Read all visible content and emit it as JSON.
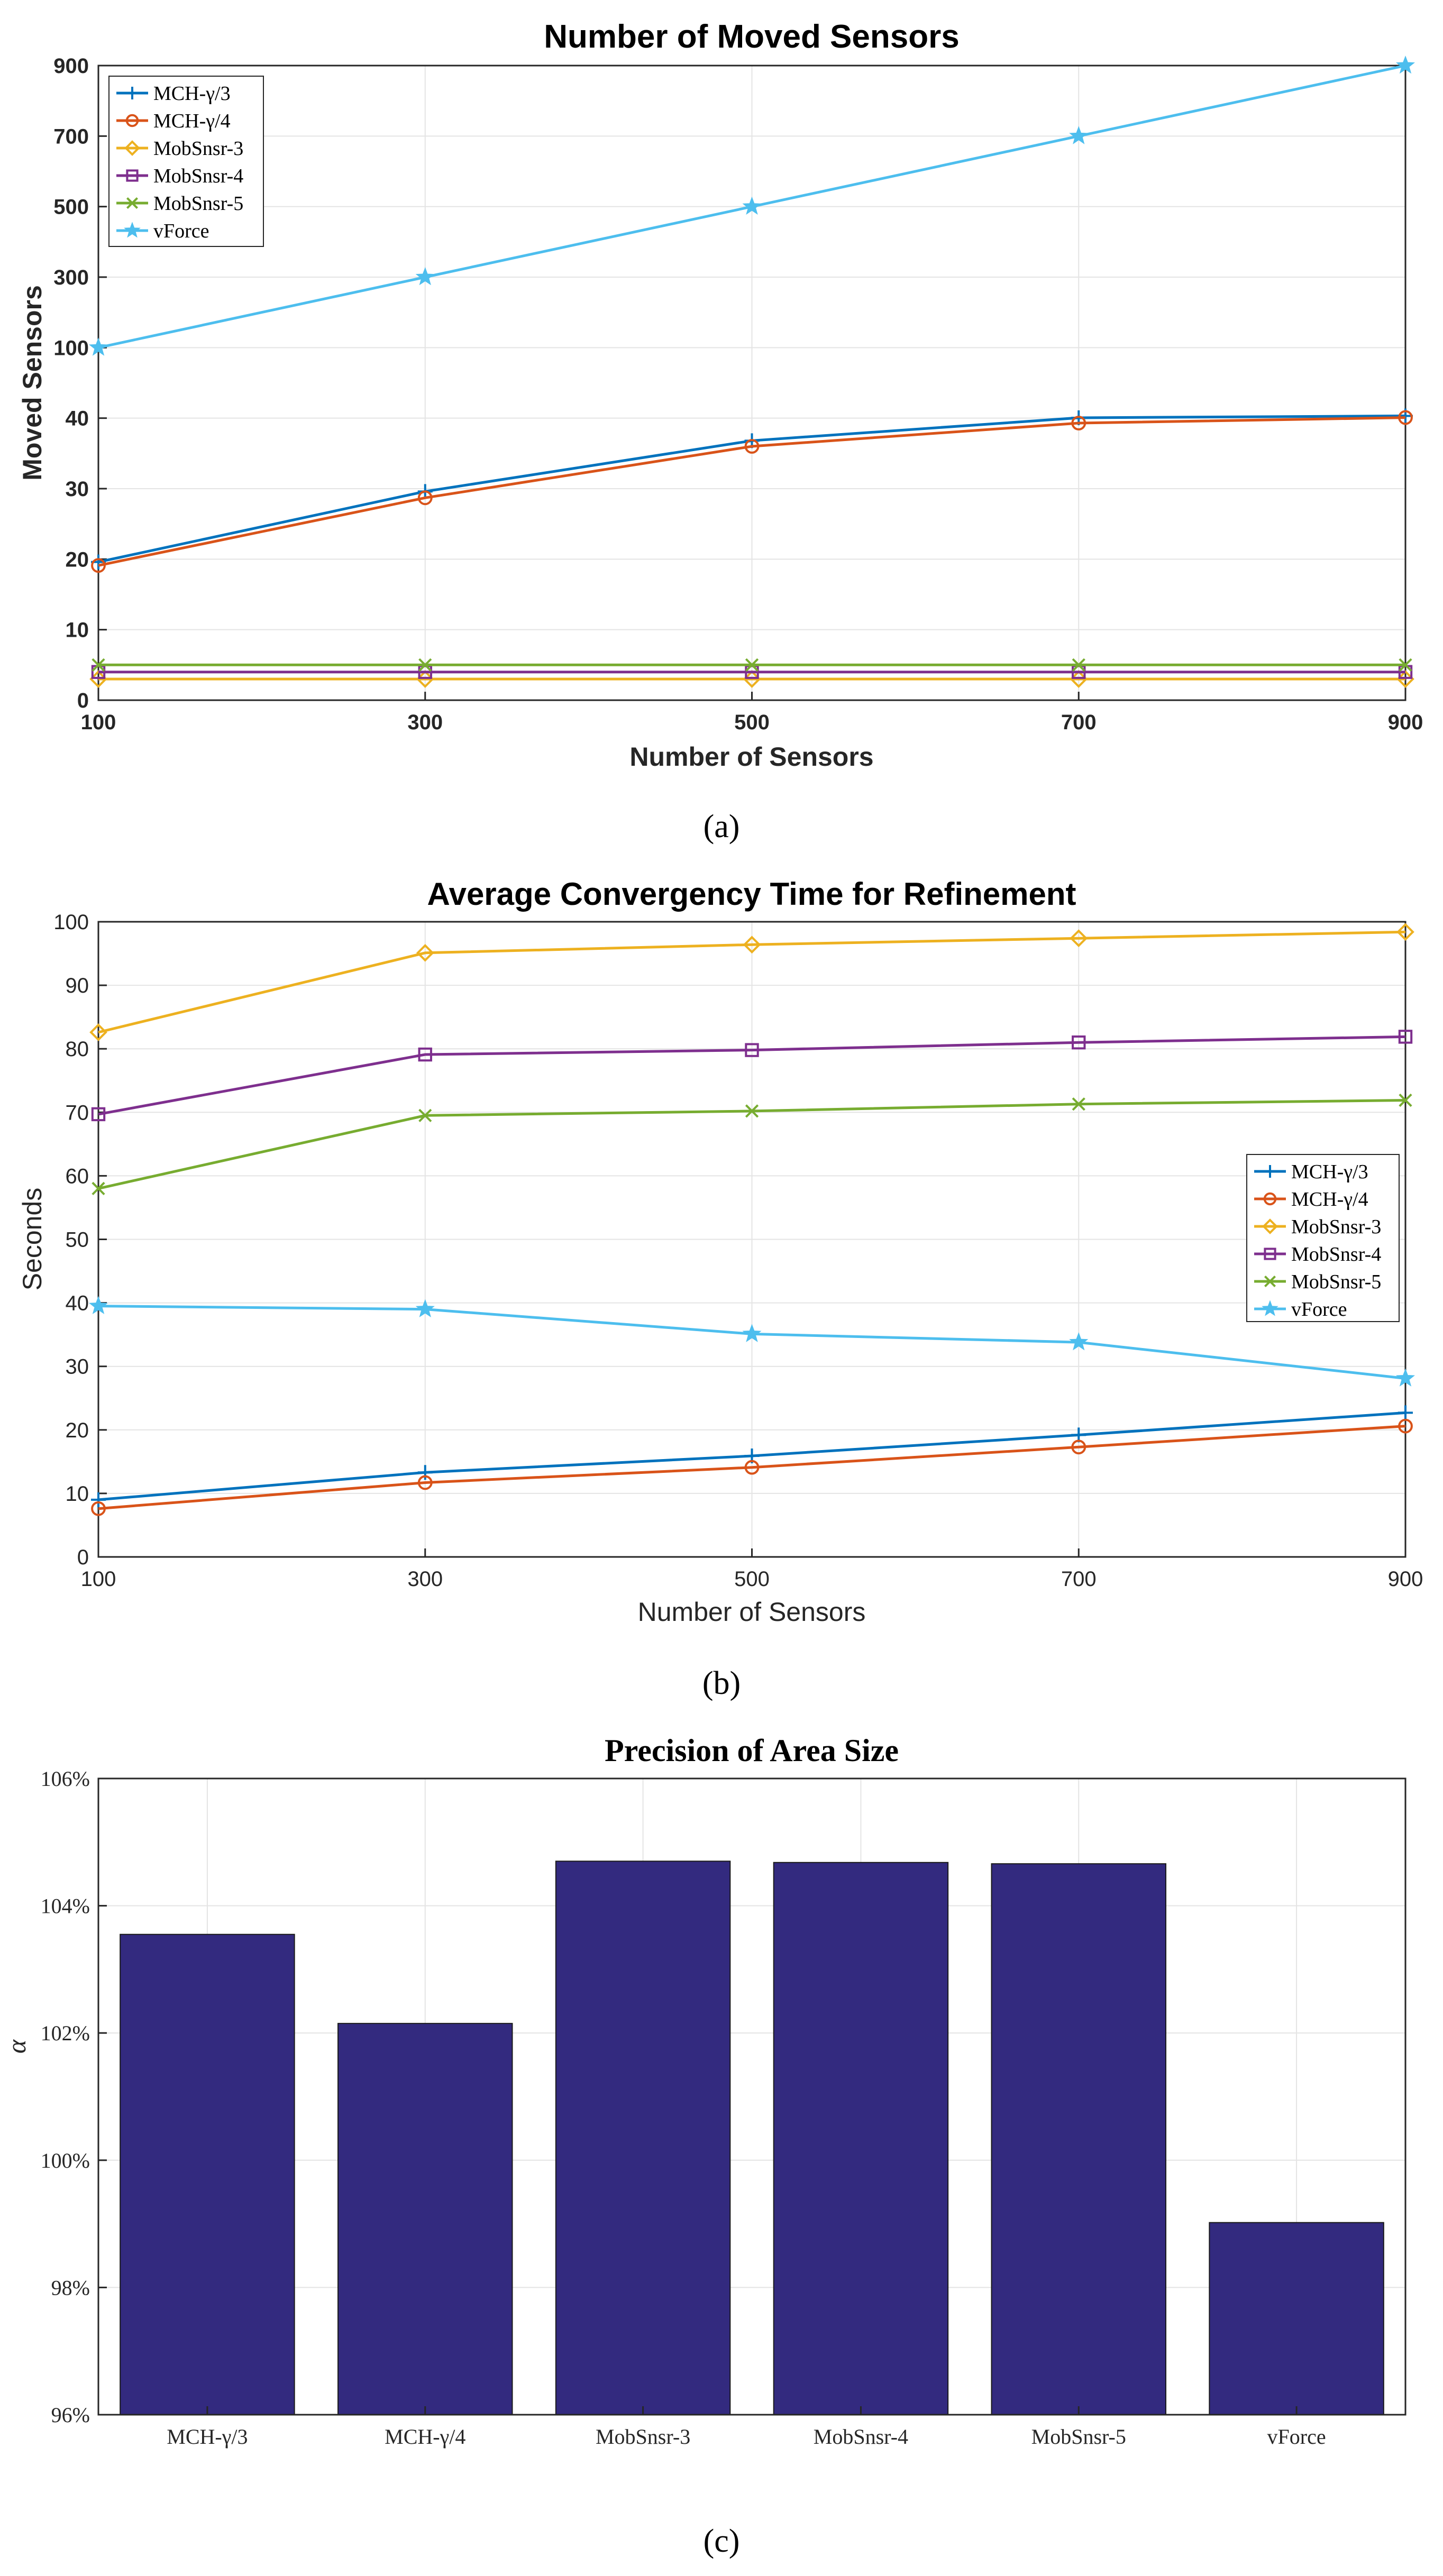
{
  "chart_data": [
    {
      "type": "line",
      "title": "Number of Moved Sensors",
      "xlabel": "Number of Sensors",
      "ylabel": "Moved Sensors",
      "caption": "(a)",
      "x": [
        100,
        300,
        500,
        700,
        900
      ],
      "xticks": [
        "100",
        "300",
        "500",
        "700",
        "900"
      ],
      "yticks": [
        "0",
        "10",
        "20",
        "30",
        "40",
        "100",
        "300",
        "500",
        "700",
        "900"
      ],
      "y_axis_note": "piecewise axis: tick labels evenly spaced",
      "grid": true,
      "legend_position": "top-left",
      "series": [
        {
          "name": "MCH-γ/3",
          "marker": "plus",
          "color": "#0072BD",
          "values": [
            19.6,
            29.6,
            36.8,
            40.3,
            41.9
          ]
        },
        {
          "name": "MCH-γ/4",
          "marker": "circle",
          "color": "#D95319",
          "values": [
            19.1,
            28.7,
            36.0,
            39.3,
            40.5
          ]
        },
        {
          "name": "MobSnsr-3",
          "marker": "diamond",
          "color": "#EDB120",
          "values": [
            3,
            3,
            3,
            3,
            3
          ]
        },
        {
          "name": "MobSnsr-4",
          "marker": "square",
          "color": "#7E2F8E",
          "values": [
            4,
            4,
            4,
            4,
            4
          ]
        },
        {
          "name": "MobSnsr-5",
          "marker": "x",
          "color": "#77AC30",
          "values": [
            5,
            5,
            5,
            5,
            5
          ]
        },
        {
          "name": "vForce",
          "marker": "star",
          "color": "#4DBEEE",
          "values": [
            100,
            300,
            500,
            700,
            900
          ]
        }
      ]
    },
    {
      "type": "line",
      "title": "Average Convergency Time for Refinement",
      "xlabel": "Number of Sensors",
      "ylabel": "Seconds",
      "caption": "(b)",
      "x": [
        100,
        300,
        500,
        700,
        900
      ],
      "xticks": [
        "100",
        "300",
        "500",
        "700",
        "900"
      ],
      "ylim": [
        0,
        100
      ],
      "yticks": [
        "0",
        "10",
        "20",
        "30",
        "40",
        "50",
        "60",
        "70",
        "80",
        "90",
        "100"
      ],
      "grid": true,
      "legend_position": "right",
      "series": [
        {
          "name": "MCH-γ/3",
          "marker": "plus",
          "color": "#0072BD",
          "values": [
            9.0,
            13.3,
            15.9,
            19.2,
            22.7
          ]
        },
        {
          "name": "MCH-γ/4",
          "marker": "circle",
          "color": "#D95319",
          "values": [
            7.6,
            11.7,
            14.1,
            17.3,
            20.6
          ]
        },
        {
          "name": "MobSnsr-3",
          "marker": "diamond",
          "color": "#EDB120",
          "values": [
            82.6,
            95.1,
            96.4,
            97.4,
            98.4
          ]
        },
        {
          "name": "MobSnsr-4",
          "marker": "square",
          "color": "#7E2F8E",
          "values": [
            69.7,
            79.1,
            79.8,
            81.0,
            81.9
          ]
        },
        {
          "name": "MobSnsr-5",
          "marker": "x",
          "color": "#77AC30",
          "values": [
            58.0,
            69.5,
            70.2,
            71.3,
            71.9
          ]
        },
        {
          "name": "vForce",
          "marker": "star",
          "color": "#4DBEEE",
          "values": [
            39.5,
            39.0,
            35.1,
            33.8,
            28.1
          ]
        }
      ]
    },
    {
      "type": "bar",
      "title": "Precision of Area Size",
      "ylabel": "α",
      "caption": "(c)",
      "categories": [
        "MCH-γ/3",
        "MCH-γ/4",
        "MobSnsr-3",
        "MobSnsr-4",
        "MobSnsr-5",
        "vForce"
      ],
      "values": [
        103.55,
        102.15,
        104.7,
        104.68,
        104.66,
        99.02
      ],
      "ylim": [
        96,
        106
      ],
      "yticks": [
        "96%",
        "98%",
        "100%",
        "102%",
        "104%",
        "106%"
      ],
      "bar_color": "#332A7F",
      "grid": true
    }
  ]
}
